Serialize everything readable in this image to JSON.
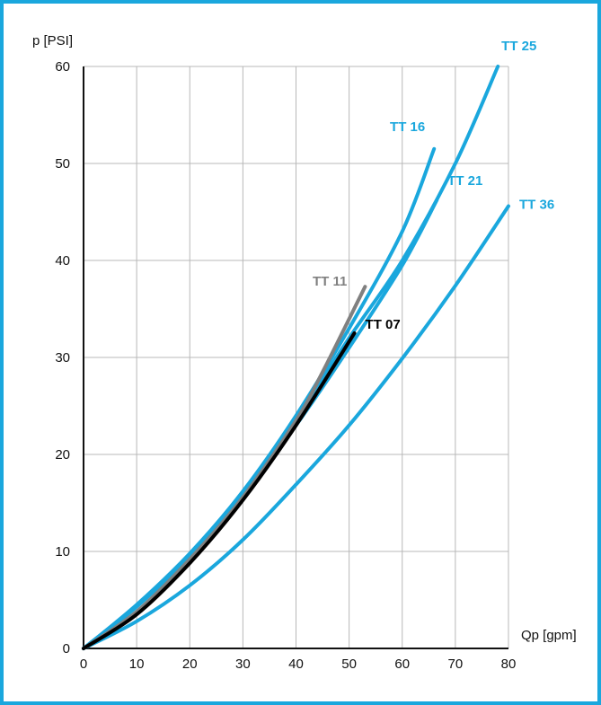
{
  "chart_data": {
    "type": "line",
    "ylabel": "p [PSI]",
    "xlabel": "Qp [gpm]",
    "xlim": [
      0,
      80
    ],
    "ylim": [
      0,
      60
    ],
    "xticks": [
      0,
      10,
      20,
      30,
      40,
      50,
      60,
      70,
      80
    ],
    "yticks": [
      0,
      10,
      20,
      30,
      40,
      50,
      60
    ],
    "x_tick_labels": [
      "0",
      "10",
      "20",
      "30",
      "40",
      "50",
      "60",
      "70",
      "80"
    ],
    "y_tick_labels": [
      "0",
      "10",
      "20",
      "30",
      "40",
      "50",
      "60"
    ],
    "grid": true,
    "series": [
      {
        "name": "TT 36",
        "color": "#1aa7dd",
        "x": [
          0,
          10,
          20,
          30,
          40,
          50,
          60,
          70,
          80
        ],
        "y": [
          0,
          2.8,
          6.5,
          11.2,
          16.9,
          23.0,
          29.9,
          37.4,
          45.6
        ]
      },
      {
        "name": "TT 25",
        "color": "#1aa7dd",
        "x": [
          0,
          10,
          20,
          30,
          40,
          50,
          60,
          70,
          78
        ],
        "y": [
          0,
          4.3,
          9.5,
          15.5,
          23.5,
          32.0,
          40.0,
          50.0,
          60.0
        ]
      },
      {
        "name": "TT 21",
        "color": "#1aa7dd",
        "x": [
          0,
          10,
          20,
          30,
          40,
          50,
          60,
          66.5
        ],
        "y": [
          0,
          4.4,
          9.6,
          15.7,
          23.0,
          31.0,
          39.5,
          46.2
        ]
      },
      {
        "name": "TT 16",
        "color": "#1aa7dd",
        "x": [
          0,
          10,
          20,
          30,
          40,
          50,
          60,
          66
        ],
        "y": [
          0,
          4.5,
          9.8,
          16.2,
          24.0,
          33.0,
          43.0,
          51.5
        ]
      },
      {
        "name": "TT 11",
        "color": "#808080",
        "x": [
          0,
          10,
          20,
          30,
          40,
          45,
          53
        ],
        "y": [
          0,
          3.8,
          9.2,
          15.6,
          23.5,
          28.5,
          37.3
        ]
      },
      {
        "name": "TT 07",
        "color": "#000000",
        "x": [
          0,
          10,
          20,
          30,
          40,
          51
        ],
        "y": [
          0,
          3.5,
          8.8,
          15.3,
          23.0,
          32.5
        ]
      }
    ]
  }
}
